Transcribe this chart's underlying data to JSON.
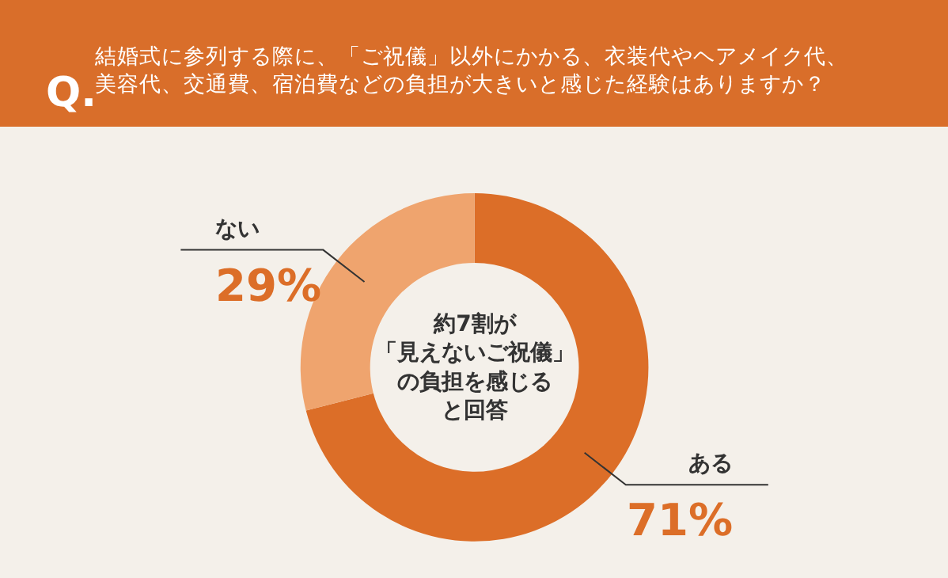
{
  "chart_data": {
    "type": "donut",
    "title": "結婚式に参列する際に、「ご祝儀」以外にかかる、衣装代やヘアメイク代、美容代、交通費、宿泊費などの負担が大きいと感じた経験はありますか？",
    "annotations": [
      "Q.",
      "約7割が「見えないご祝儀」の負担を感じると回答"
    ],
    "categories": [
      "ある",
      "ない"
    ],
    "values": [
      71,
      29
    ],
    "value_labels": [
      "71%",
      "29%"
    ],
    "colors": [
      "#dc6e28",
      "#efa46e"
    ],
    "legend": false
  }
}
